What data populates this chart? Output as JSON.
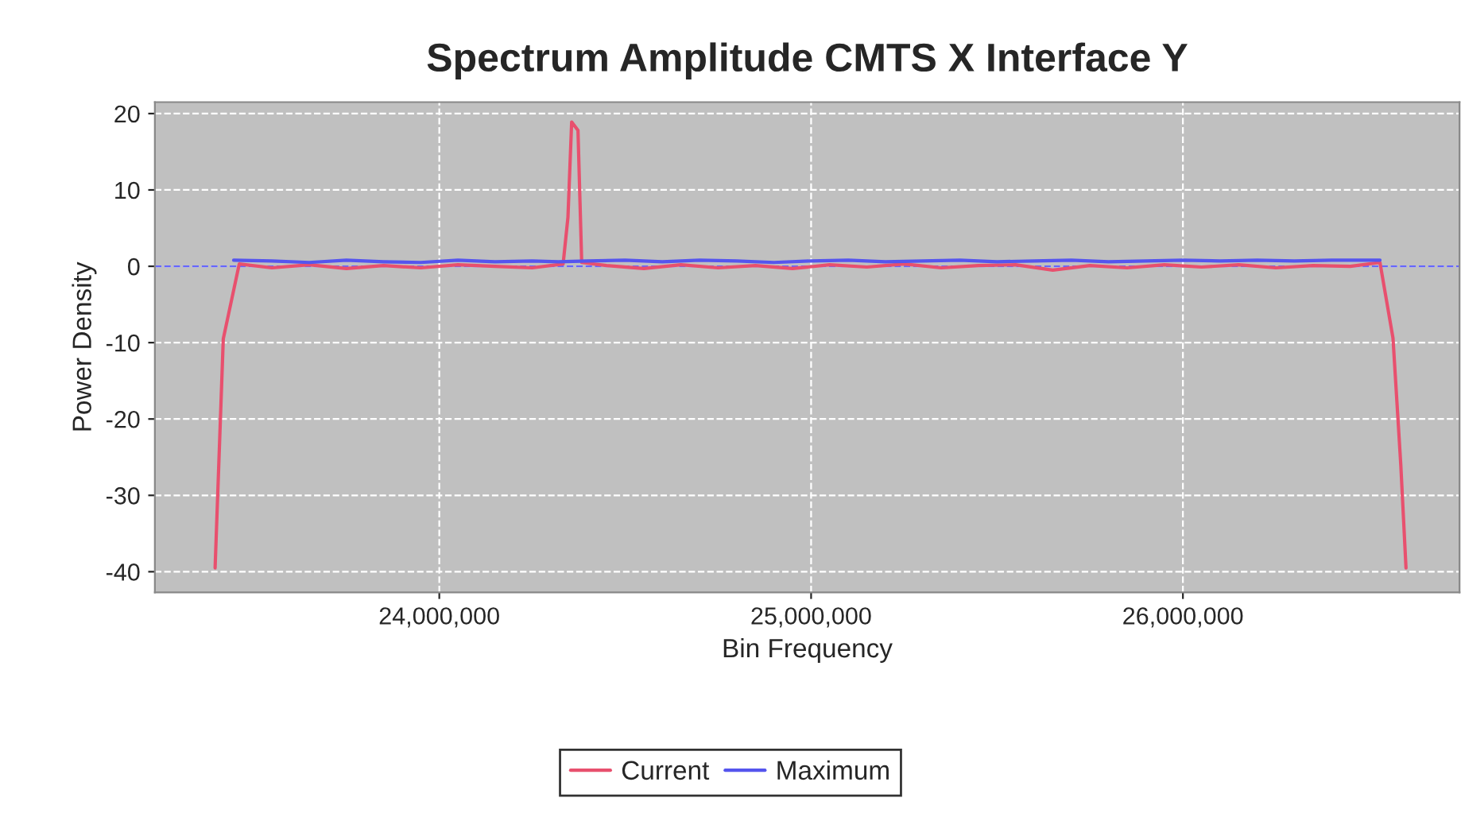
{
  "chart_data": {
    "type": "line",
    "title": "Spectrum Amplitude CMTS X Interface Y",
    "xlabel": "Bin Frequency",
    "ylabel": "Power Density",
    "xlim": [
      23235000,
      26744000
    ],
    "ylim": [
      -42.7,
      21.5
    ],
    "xticks": [
      {
        "value": 24000000,
        "label": "24,000,000"
      },
      {
        "value": 25000000,
        "label": "25,000,000"
      },
      {
        "value": 26000000,
        "label": "26,000,000"
      }
    ],
    "yticks": [
      -40,
      -30,
      -20,
      -10,
      0,
      10,
      20
    ],
    "grid": true,
    "legend": "bottom",
    "marker": "none",
    "line_style": "solid",
    "ref_lines": [
      {
        "axis": "y",
        "value": 0,
        "color": "#6666ff",
        "line_style": "dashed"
      }
    ],
    "series": [
      {
        "name": "Current",
        "color": "#e8506e",
        "x": [
          23397000,
          23419000,
          23462000,
          23550000,
          23650000,
          23750000,
          23850000,
          23950000,
          24050000,
          24150000,
          24250000,
          24333000,
          24346000,
          24356000,
          24373000,
          24383000,
          24450000,
          24550000,
          24650000,
          24750000,
          24850000,
          24950000,
          25050000,
          25150000,
          25250000,
          25350000,
          25450000,
          25550000,
          25650000,
          25750000,
          25850000,
          25950000,
          26050000,
          26150000,
          26250000,
          26350000,
          26450000,
          26530000,
          26565000,
          26586000,
          26600000
        ],
        "values": [
          -39.5,
          -9.5,
          0.3,
          -0.2,
          0.2,
          -0.3,
          0.1,
          -0.2,
          0.2,
          0.0,
          -0.2,
          0.3,
          6.4,
          18.9,
          17.8,
          0.5,
          0.1,
          -0.3,
          0.2,
          -0.2,
          0.1,
          -0.3,
          0.2,
          -0.1,
          0.3,
          -0.2,
          0.1,
          0.2,
          -0.5,
          0.1,
          -0.2,
          0.2,
          -0.1,
          0.2,
          -0.2,
          0.1,
          0.0,
          0.5,
          -9.4,
          -26,
          -39.5
        ]
      },
      {
        "name": "Maximum",
        "color": "#5555ee",
        "x": [
          23447000,
          23550000,
          23650000,
          23750000,
          23850000,
          23950000,
          24050000,
          24150000,
          24250000,
          24320000,
          24400000,
          24500000,
          24600000,
          24700000,
          24800000,
          24900000,
          25000000,
          25100000,
          25200000,
          25300000,
          25400000,
          25500000,
          25600000,
          25700000,
          25800000,
          25900000,
          26000000,
          26100000,
          26200000,
          26300000,
          26400000,
          26500000,
          26530000
        ],
        "values": [
          0.8,
          0.7,
          0.5,
          0.8,
          0.6,
          0.5,
          0.8,
          0.6,
          0.7,
          0.6,
          0.7,
          0.8,
          0.6,
          0.8,
          0.7,
          0.5,
          0.7,
          0.8,
          0.6,
          0.7,
          0.8,
          0.6,
          0.7,
          0.8,
          0.6,
          0.7,
          0.8,
          0.7,
          0.8,
          0.7,
          0.8,
          0.8,
          0.8
        ]
      }
    ]
  }
}
